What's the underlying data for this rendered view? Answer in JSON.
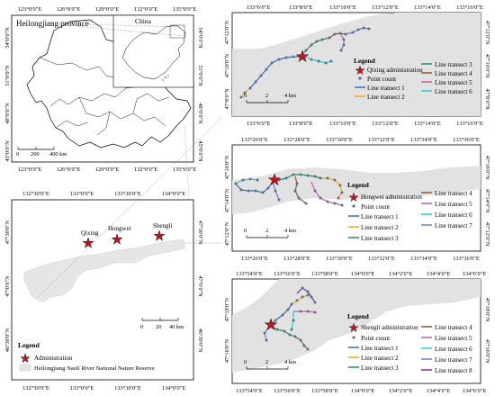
{
  "overview": {
    "title": "Heilongjiang province",
    "inset_label": "China",
    "lon_ticks": [
      "123°0′0″E",
      "126°0′0″E",
      "129°0′0″E",
      "132°0′0″E",
      "135°0′0″E"
    ],
    "lat_ticks": [
      "54°0′0″N",
      "51°0′0″N",
      "48°0′0″N",
      "45°0′0″N"
    ],
    "scale": [
      "0",
      "200",
      "400 km"
    ]
  },
  "region": {
    "lon_ticks": [
      "132°30′0″E",
      "133°0′0″E",
      "133°30′0″E",
      "134°0′0″E"
    ],
    "lat_ticks": [
      "47°30′0″N",
      "47°0′0″N",
      "46°30′0″N"
    ],
    "sites": [
      "Qixing",
      "Hongwei",
      "Shengli"
    ],
    "scale": [
      "0",
      "20",
      "40 km"
    ],
    "legend": {
      "title": "Legend",
      "items": [
        "Administration",
        "Heilongjiang Naoli River National Nature Reserve"
      ]
    },
    "colors": {
      "administration": "#c0161d",
      "reserve": "#e6e6e6"
    }
  },
  "panels": [
    {
      "name": "qixing",
      "lon_ticks": [
        "133°6′0″E",
        "133°8′0″E",
        "133°10′0″E",
        "133°12′0″E",
        "133°14′0″E",
        "133°16′0″E"
      ],
      "lat_ticks": [
        "47°12′0″N",
        "47°10′0″N",
        "47°8′0″N"
      ],
      "scale": [
        "0",
        "2",
        "4 km"
      ],
      "legend_title": "Legend",
      "legend_left": [
        "Qixing administration",
        "Point count",
        "Line transect 1",
        "Line transect 2"
      ],
      "legend_right": [
        "Line transect 3",
        "Line transect 4",
        "Line transect 5",
        "Line transect 6"
      ]
    },
    {
      "name": "hongwei",
      "lon_ticks": [
        "133°26′0″E",
        "133°28′0″E",
        "133°30′0″E",
        "133°32′0″E",
        "133°34′0″E",
        "133°36′0″E"
      ],
      "lat_ticks": [
        "47°16′0″N",
        "47°14′0″N",
        "47°12′0″N"
      ],
      "scale": [
        "0",
        "2",
        "4 km"
      ],
      "legend_title": "Legend",
      "legend_left": [
        "Hongwei administration",
        "Point count",
        "Line transect 1",
        "Line transect 2",
        "Line transect 3"
      ],
      "legend_right": [
        "Line transect 4",
        "Line transect 5",
        "Line transect 6",
        "Line transect 7"
      ]
    },
    {
      "name": "shengli",
      "lon_ticks": [
        "133°54′0″E",
        "133°56′0″E",
        "133°58′0″E",
        "134°0′0″E",
        "134°2′0″E",
        "134°4′0″E",
        "134°6′0″E"
      ],
      "lat_ticks": [
        "47°18′0″N",
        "47°16′0″N"
      ],
      "scale": [
        "0",
        "2",
        "4 km"
      ],
      "legend_title": "Legend",
      "legend_left": [
        "Shengli administration",
        "Point count",
        "Line transect 1",
        "Line transect 2",
        "Line transect 3"
      ],
      "legend_right": [
        "Line transect 4",
        "Line transect 5",
        "Line transect 6",
        "Line transect 7",
        "Line transect 8"
      ]
    }
  ],
  "transect_colors": [
    "#2e6fc4",
    "#f0a818",
    "#1f8f6a",
    "#8b5a2b",
    "#c0609e",
    "#26d0c8",
    "#6a7fd0",
    "#7d2a9e"
  ]
}
